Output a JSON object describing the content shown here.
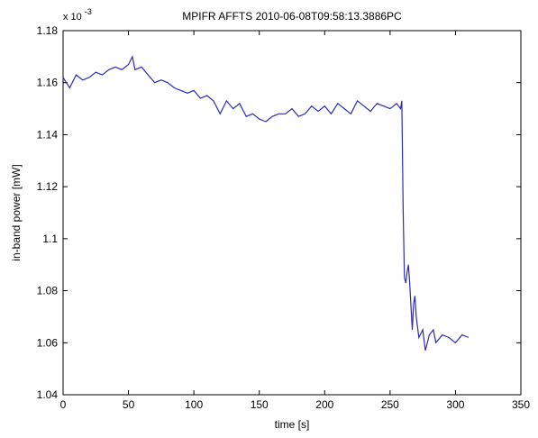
{
  "chart_data": {
    "type": "line",
    "title": "MPIFR AFFTS 2010-06-08T09:58:13.3886PC",
    "xlabel": "time [s]",
    "ylabel": "in-band power [mW]",
    "y_exponent_label": "x 10",
    "y_exponent_power": "-3",
    "xlim": [
      0,
      350
    ],
    "ylim": [
      1.04,
      1.18
    ],
    "x_ticks": [
      "0",
      "50",
      "100",
      "150",
      "200",
      "250",
      "300",
      "350"
    ],
    "y_ticks": [
      "1.04",
      "1.06",
      "1.08",
      "1.1",
      "1.12",
      "1.14",
      "1.16",
      "1.18"
    ],
    "grid": false,
    "line_color": "#2b2bb8",
    "series": [
      {
        "x": [
          0,
          5,
          10,
          15,
          20,
          25,
          30,
          35,
          40,
          45,
          50,
          53,
          55,
          60,
          65,
          70,
          75,
          80,
          85,
          90,
          95,
          100,
          105,
          110,
          115,
          120,
          125,
          130,
          135,
          140,
          145,
          150,
          155,
          160,
          165,
          170,
          175,
          180,
          185,
          190,
          195,
          200,
          205,
          210,
          215,
          220,
          225,
          230,
          235,
          240,
          245,
          250,
          255,
          258,
          259,
          260,
          261,
          262,
          263,
          264,
          265,
          267,
          268,
          269,
          270,
          272,
          275,
          277,
          280,
          283,
          285,
          290,
          295,
          300,
          305,
          310
        ],
        "y": [
          1.162,
          1.158,
          1.163,
          1.161,
          1.162,
          1.164,
          1.163,
          1.165,
          1.166,
          1.165,
          1.167,
          1.17,
          1.165,
          1.166,
          1.163,
          1.16,
          1.161,
          1.16,
          1.158,
          1.157,
          1.156,
          1.157,
          1.154,
          1.155,
          1.153,
          1.148,
          1.153,
          1.15,
          1.152,
          1.147,
          1.148,
          1.146,
          1.145,
          1.147,
          1.148,
          1.148,
          1.15,
          1.147,
          1.148,
          1.151,
          1.149,
          1.151,
          1.148,
          1.152,
          1.15,
          1.148,
          1.153,
          1.151,
          1.149,
          1.152,
          1.151,
          1.15,
          1.152,
          1.15,
          1.153,
          1.11,
          1.085,
          1.083,
          1.087,
          1.09,
          1.083,
          1.065,
          1.075,
          1.078,
          1.07,
          1.062,
          1.065,
          1.057,
          1.063,
          1.065,
          1.06,
          1.063,
          1.062,
          1.06,
          1.063,
          1.062
        ]
      }
    ]
  }
}
